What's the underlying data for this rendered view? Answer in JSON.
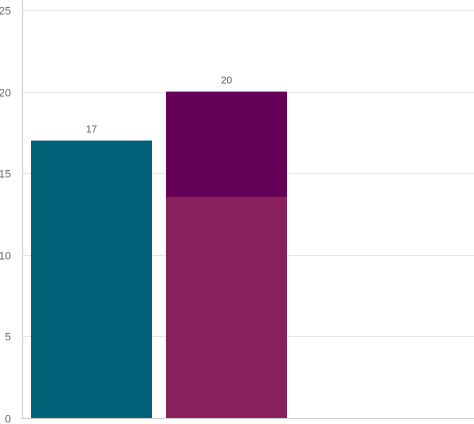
{
  "chart_data": {
    "type": "bar",
    "stacked": true,
    "categories": [
      "",
      ""
    ],
    "series": [
      {
        "color": "#006078",
        "values": [
          17,
          0
        ]
      },
      {
        "color": "#89205c",
        "values": [
          0,
          13.5
        ]
      },
      {
        "color": "#640057",
        "values": [
          0,
          6.5
        ]
      }
    ],
    "totals": [
      "17",
      "20"
    ],
    "y_ticks": [
      0,
      5,
      10,
      15,
      20,
      25
    ],
    "y_tick_labels": [
      "0",
      "5",
      "10",
      "15",
      "20",
      "25"
    ],
    "ylim": [
      0,
      25
    ],
    "grid": true,
    "legend": false,
    "title": "",
    "xlabel": "",
    "ylabel": ""
  }
}
